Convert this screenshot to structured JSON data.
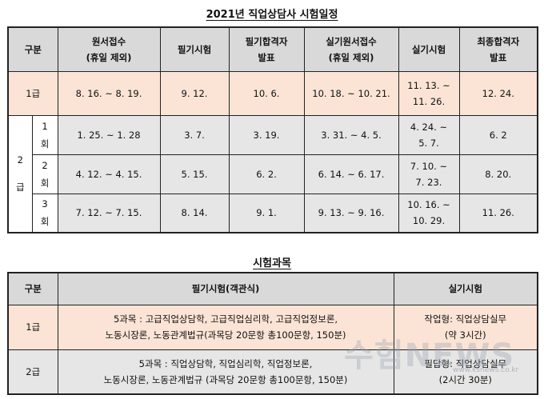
{
  "schedule": {
    "title": "2021년 직업상담사 시험일정",
    "headers": [
      "구분",
      "원서접수\n(휴일 제외)",
      "필기시험",
      "필기합격자\n발표",
      "실기원서접수\n(휴일 제외)",
      "실기시험",
      "최종합격자\n발표"
    ],
    "level1": {
      "label": "1급",
      "cells": [
        "8. 16. ~ 8. 19.",
        "9. 12.",
        "10. 6.",
        "10. 18. ~ 10. 21.",
        "11. 13. ~\n11. 26.",
        "12. 24."
      ]
    },
    "level2": {
      "label": "2\n급",
      "rounds": [
        {
          "label": "1\n회",
          "cells": [
            "1. 25. ~ 1. 28",
            "3. 7.",
            "3. 19.",
            "3. 31. ~ 4. 5.",
            "4. 24. ~\n5. 7.",
            "6. 2"
          ]
        },
        {
          "label": "2\n회",
          "cells": [
            "4. 12. ~ 4. 15.",
            "5. 15.",
            "6. 2.",
            "6. 14. ~ 6. 17.",
            "7. 10. ~\n7. 23.",
            "8. 20."
          ]
        },
        {
          "label": "3\n회",
          "cells": [
            "7. 12. ~ 7. 15.",
            "8. 14.",
            "9. 1.",
            "9. 13. ~ 9. 16.",
            "10. 16. ~\n10. 29.",
            "11. 26."
          ]
        }
      ]
    }
  },
  "subjects": {
    "title": "시험과목",
    "headers": [
      "구분",
      "필기시험(객관식)",
      "실기시험"
    ],
    "rows": [
      {
        "label": "1급",
        "written": "5과목 : 고급직업상담학, 고급직업심리학, 고급직업정보론,\n노동시장론, 노동관계법규(과목당 20문항 총100문항, 150분)",
        "practical": "작업형: 직업상담실무\n(약 3시간)"
      },
      {
        "label": "2급",
        "written": "5과목 : 직업상담학, 직업심리학, 직업정보론,\n노동시장론, 노동관계법규 (과목당 20문항 총100문항, 150분)",
        "practical": "필답형: 직업상담실무\n(2시간 30분)"
      }
    ]
  },
  "watermark": {
    "text": "수험NEWS",
    "url": "www.ksnews.co.kr"
  }
}
